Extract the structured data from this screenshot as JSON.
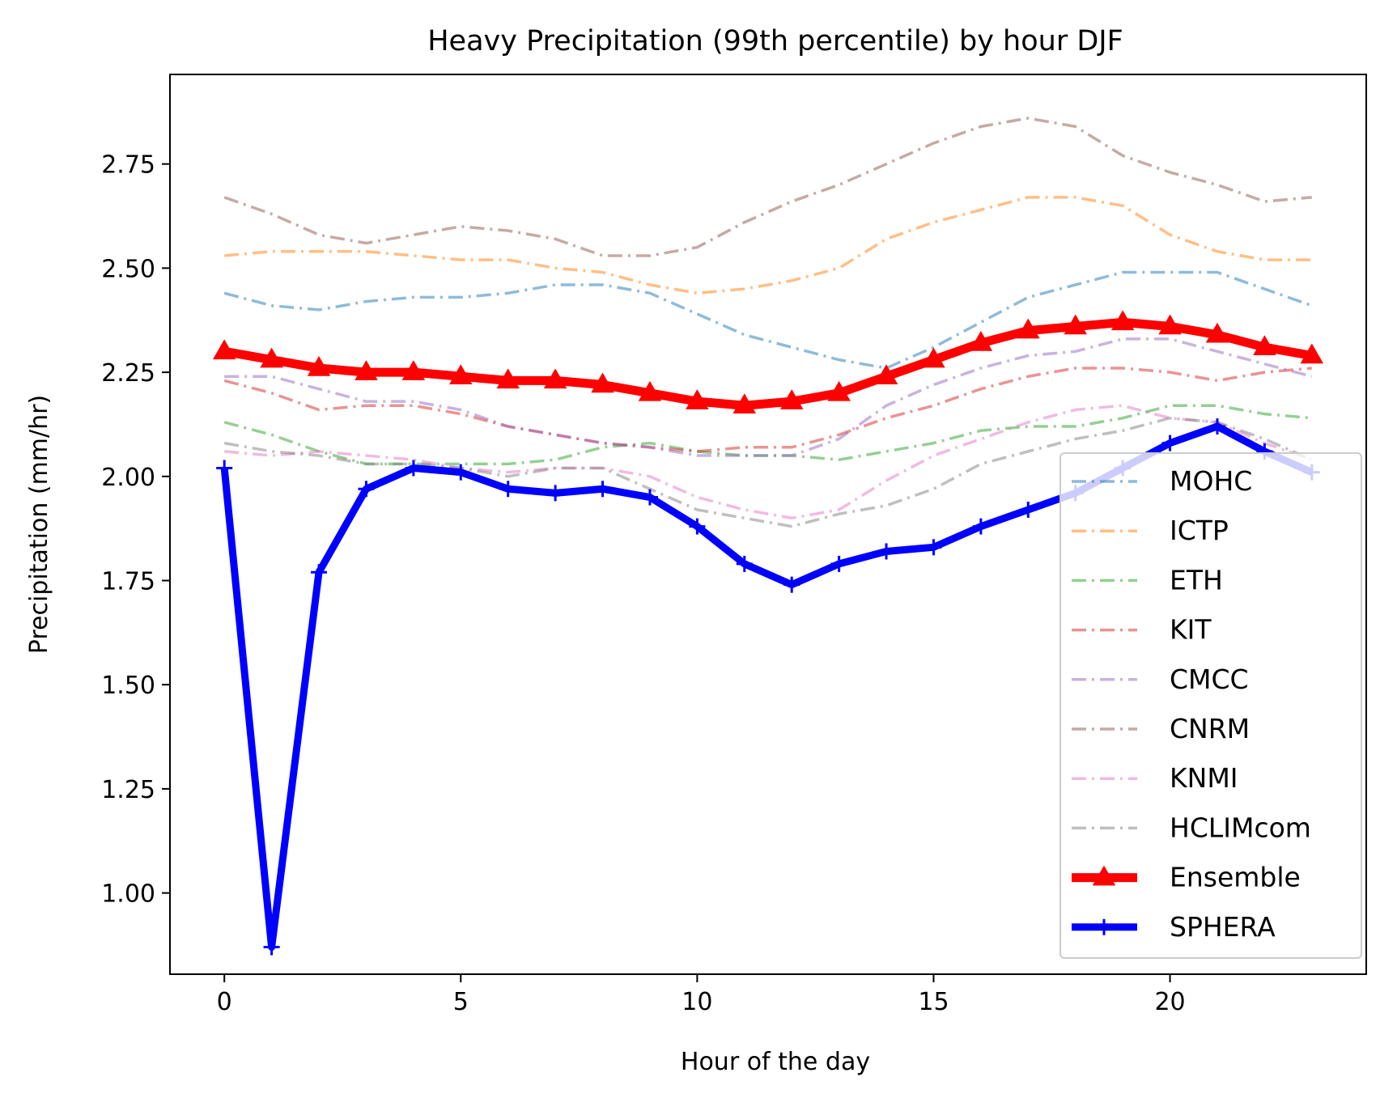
{
  "chart_data": {
    "type": "line",
    "title": "Heavy Precipitation (99th percentile) by hour DJF",
    "xlabel": "Hour of the day",
    "ylabel": "Precipitation (mm/hr)",
    "xlim": [
      -1.15,
      24.15
    ],
    "ylim": [
      0.805,
      2.965
    ],
    "xticks": [
      0,
      5,
      10,
      15,
      20
    ],
    "xtick_labels": [
      "0",
      "5",
      "10",
      "15",
      "20"
    ],
    "yticks": [
      1.0,
      1.25,
      1.5,
      1.75,
      2.0,
      2.25,
      2.5,
      2.75
    ],
    "ytick_labels": [
      "1.00",
      "1.25",
      "1.50",
      "1.75",
      "2.00",
      "2.25",
      "2.50",
      "2.75"
    ],
    "grid": false,
    "legend_position": "lower-right",
    "x": [
      0,
      1,
      2,
      3,
      4,
      5,
      6,
      7,
      8,
      9,
      10,
      11,
      12,
      13,
      14,
      15,
      16,
      17,
      18,
      19,
      20,
      21,
      22,
      23
    ],
    "series": [
      {
        "name": "MOHC",
        "color": "#1f77b4",
        "style": "dashdot",
        "alpha": 0.5,
        "values": [
          2.44,
          2.41,
          2.4,
          2.42,
          2.43,
          2.43,
          2.44,
          2.46,
          2.46,
          2.44,
          2.39,
          2.34,
          2.31,
          2.28,
          2.26,
          2.31,
          2.37,
          2.43,
          2.46,
          2.49,
          2.49,
          2.49,
          2.45,
          2.41
        ]
      },
      {
        "name": "ICTP",
        "color": "#ff7f0e",
        "style": "dashdot",
        "alpha": 0.5,
        "values": [
          2.53,
          2.54,
          2.54,
          2.54,
          2.53,
          2.52,
          2.52,
          2.5,
          2.49,
          2.46,
          2.44,
          2.45,
          2.47,
          2.5,
          2.57,
          2.61,
          2.64,
          2.67,
          2.67,
          2.65,
          2.58,
          2.54,
          2.52,
          2.52
        ]
      },
      {
        "name": "ETH",
        "color": "#2ca02c",
        "style": "dashdot",
        "alpha": 0.5,
        "values": [
          2.13,
          2.1,
          2.06,
          2.03,
          2.03,
          2.03,
          2.03,
          2.04,
          2.07,
          2.08,
          2.06,
          2.05,
          2.05,
          2.04,
          2.06,
          2.08,
          2.11,
          2.12,
          2.12,
          2.14,
          2.17,
          2.17,
          2.15,
          2.14
        ]
      },
      {
        "name": "KIT",
        "color": "#d62728",
        "style": "dashdot",
        "alpha": 0.5,
        "values": [
          2.23,
          2.2,
          2.16,
          2.17,
          2.17,
          2.15,
          2.12,
          2.1,
          2.08,
          2.07,
          2.06,
          2.07,
          2.07,
          2.1,
          2.14,
          2.17,
          2.21,
          2.24,
          2.26,
          2.26,
          2.25,
          2.23,
          2.25,
          2.26
        ]
      },
      {
        "name": "CMCC",
        "color": "#9467bd",
        "style": "dashdot",
        "alpha": 0.5,
        "values": [
          2.24,
          2.24,
          2.21,
          2.18,
          2.18,
          2.16,
          2.12,
          2.1,
          2.08,
          2.07,
          2.05,
          2.05,
          2.05,
          2.09,
          2.17,
          2.22,
          2.26,
          2.29,
          2.3,
          2.33,
          2.33,
          2.3,
          2.27,
          2.24
        ]
      },
      {
        "name": "CNRM",
        "color": "#8c564b",
        "style": "dashdot",
        "alpha": 0.5,
        "values": [
          2.67,
          2.63,
          2.58,
          2.56,
          2.58,
          2.6,
          2.59,
          2.57,
          2.53,
          2.53,
          2.55,
          2.61,
          2.66,
          2.7,
          2.75,
          2.8,
          2.84,
          2.86,
          2.84,
          2.77,
          2.73,
          2.7,
          2.66,
          2.67
        ]
      },
      {
        "name": "KNMI",
        "color": "#e377c2",
        "style": "dashdot",
        "alpha": 0.5,
        "values": [
          2.06,
          2.05,
          2.06,
          2.05,
          2.04,
          2.02,
          2.01,
          2.02,
          2.02,
          2.0,
          1.95,
          1.92,
          1.9,
          1.92,
          1.99,
          2.05,
          2.09,
          2.13,
          2.16,
          2.17,
          2.14,
          2.13,
          2.08,
          2.04
        ]
      },
      {
        "name": "HCLIMcom",
        "color": "#7f7f7f",
        "style": "dashdot",
        "alpha": 0.5,
        "values": [
          2.08,
          2.06,
          2.05,
          2.03,
          2.03,
          2.02,
          2.0,
          2.02,
          2.02,
          1.97,
          1.92,
          1.9,
          1.88,
          1.91,
          1.93,
          1.97,
          2.03,
          2.06,
          2.09,
          2.11,
          2.14,
          2.13,
          2.09,
          2.04
        ]
      },
      {
        "name": "Ensemble",
        "color": "#ff0000",
        "style": "solid",
        "alpha": 1,
        "marker": "triangle",
        "values": [
          2.3,
          2.28,
          2.26,
          2.25,
          2.25,
          2.24,
          2.23,
          2.23,
          2.22,
          2.2,
          2.18,
          2.17,
          2.18,
          2.2,
          2.24,
          2.28,
          2.32,
          2.35,
          2.36,
          2.37,
          2.36,
          2.34,
          2.31,
          2.29
        ]
      },
      {
        "name": "SPHERA",
        "color": "#0000ff",
        "style": "solid",
        "alpha": 1,
        "marker": "plus",
        "values": [
          2.02,
          0.87,
          1.77,
          1.97,
          2.02,
          2.01,
          1.97,
          1.96,
          1.97,
          1.95,
          1.88,
          1.79,
          1.74,
          1.79,
          1.82,
          1.83,
          1.88,
          1.92,
          1.96,
          2.02,
          2.08,
          2.12,
          2.06,
          2.01
        ]
      }
    ]
  }
}
